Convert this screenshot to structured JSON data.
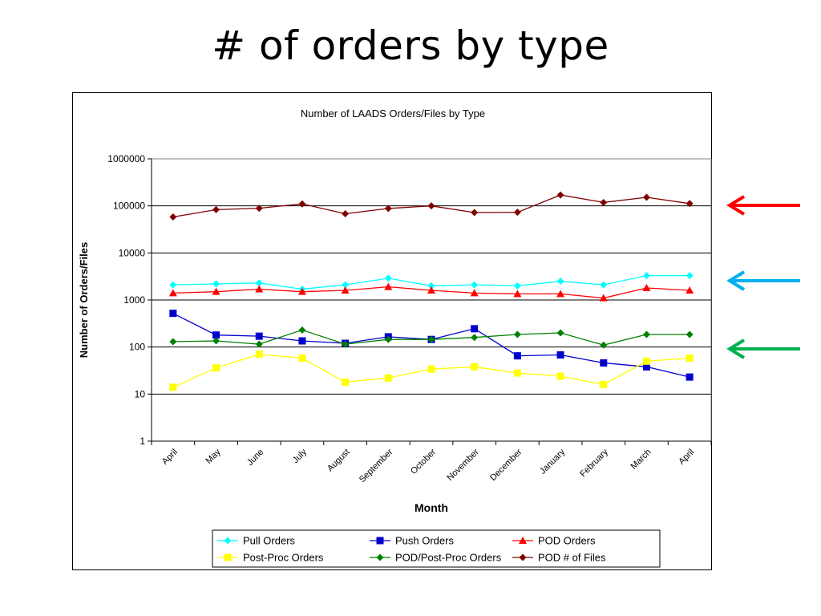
{
  "slide": {
    "title": "# of orders by type"
  },
  "chart_data": {
    "type": "line",
    "title": "Number of LAADS Orders/Files by Type",
    "xlabel": "Month",
    "ylabel": "Number of Orders/Files",
    "yscale": "log",
    "ylim": [
      1,
      1000000
    ],
    "yticks": [
      "1",
      "10",
      "100",
      "1000",
      "10000",
      "100000",
      "1000000"
    ],
    "categories": [
      "April",
      "May",
      "June",
      "July",
      "August",
      "September",
      "October",
      "November",
      "December",
      "January",
      "February",
      "March",
      "April"
    ],
    "grid": "horizontal",
    "legend": "bottom",
    "series": [
      {
        "name": "Pull Orders",
        "color": "#00FFFF",
        "marker": "diamond",
        "values": [
          2100,
          2200,
          2300,
          1700,
          2100,
          2900,
          2000,
          2100,
          2000,
          2500,
          2100,
          3300,
          3300
        ]
      },
      {
        "name": "Push Orders",
        "color": "#0000CC",
        "marker": "square",
        "values": [
          520,
          180,
          170,
          135,
          120,
          165,
          145,
          245,
          65,
          68,
          46,
          38,
          23
        ]
      },
      {
        "name": "POD Orders",
        "color": "#FF0000",
        "marker": "triangle",
        "values": [
          1400,
          1500,
          1700,
          1500,
          1600,
          1900,
          1600,
          1400,
          1350,
          1350,
          1100,
          1800,
          1600
        ]
      },
      {
        "name": "Post-Proc Orders",
        "color": "#FFFF00",
        "marker": "square",
        "values": [
          14,
          36,
          70,
          58,
          18,
          22,
          34,
          38,
          28,
          24,
          16,
          50,
          58
        ]
      },
      {
        "name": "POD/Post-Proc Orders",
        "color": "#008000",
        "marker": "diamond",
        "values": [
          130,
          135,
          115,
          230,
          115,
          145,
          145,
          160,
          185,
          200,
          110,
          185,
          185
        ]
      },
      {
        "name": "POD # of Files",
        "color": "#800000",
        "marker": "diamond",
        "values": [
          58000,
          83000,
          89000,
          110000,
          68000,
          88000,
          100000,
          72000,
          73000,
          170000,
          118000,
          152000,
          112000
        ]
      }
    ],
    "annotations": [
      {
        "type": "arrow",
        "color": "#FF0000",
        "points_to": "POD # of Files"
      },
      {
        "type": "arrow",
        "color": "#00B0F0",
        "points_to": "Pull Orders"
      },
      {
        "type": "arrow",
        "color": "#00B050",
        "points_to": "POD/Post-Proc Orders"
      }
    ]
  }
}
